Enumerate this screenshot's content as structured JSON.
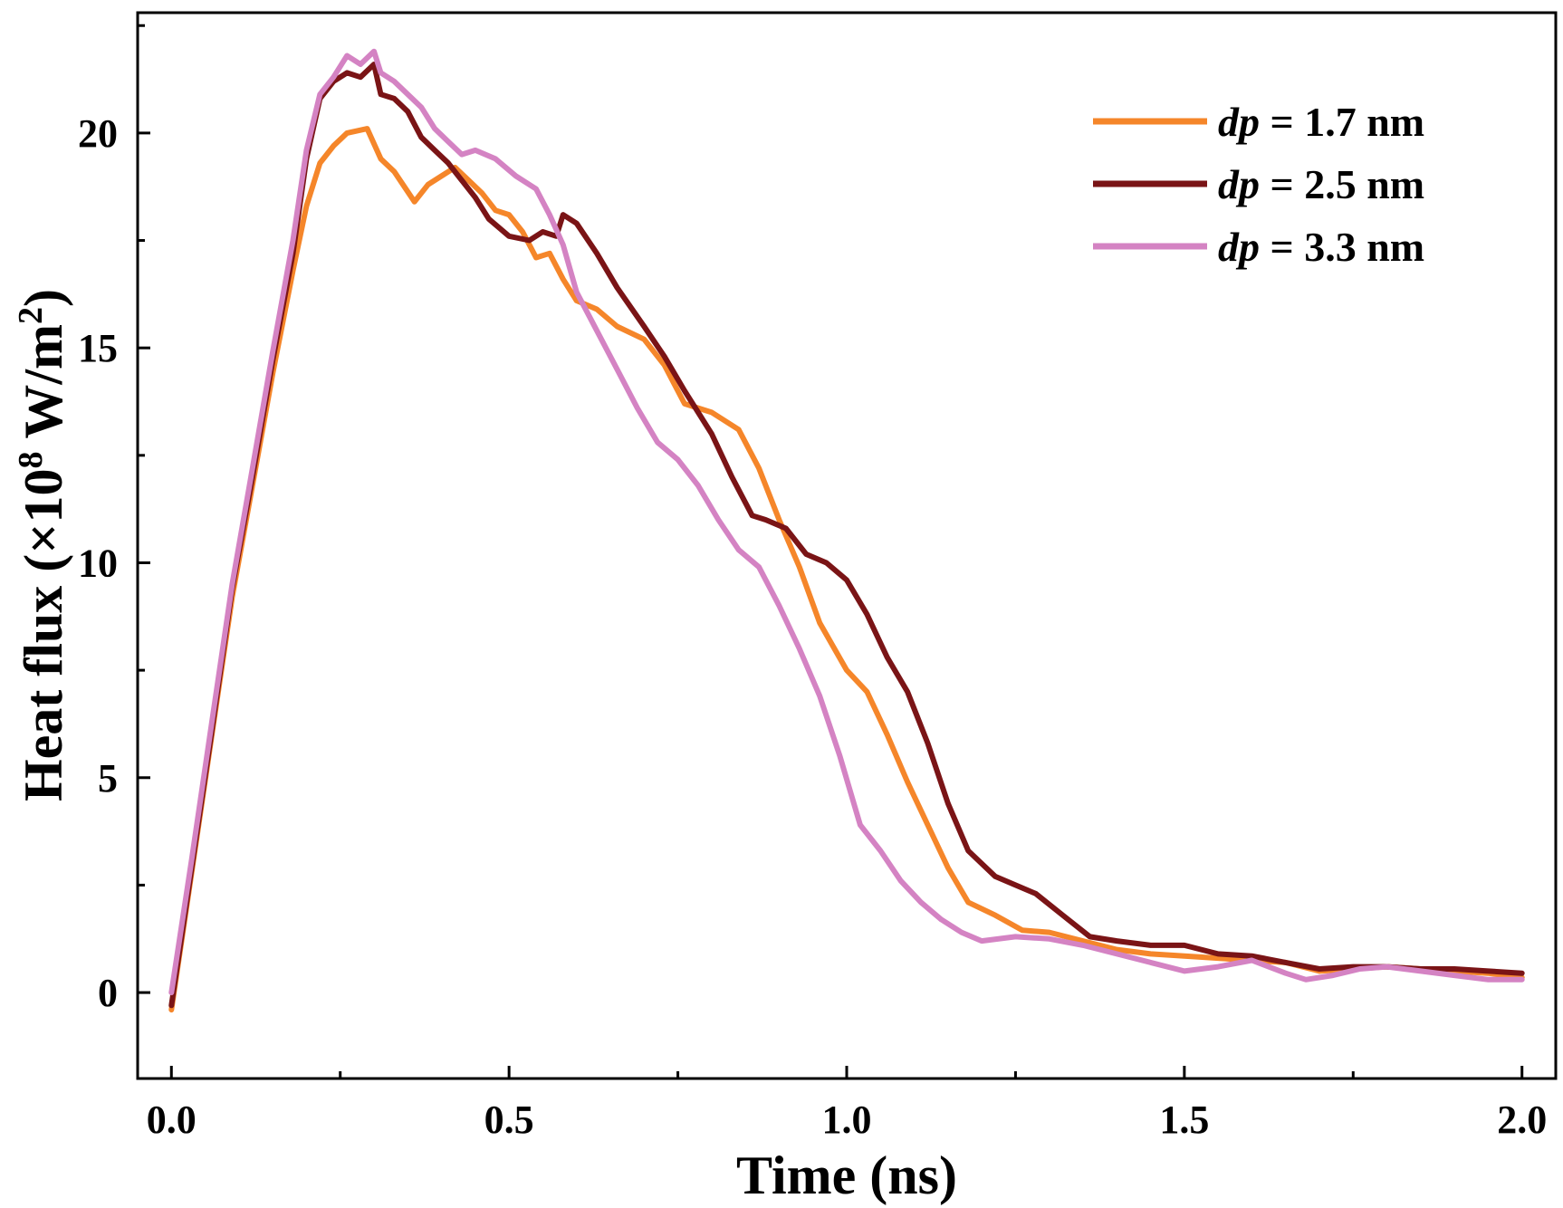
{
  "chart_data": {
    "type": "line",
    "title": "",
    "xlabel": "Time (ns)",
    "ylabel_parts": {
      "main": "Heat flux (×10",
      "sup1": "8",
      "unit": " W/m",
      "sup2": "2",
      "close": ")"
    },
    "xlim": [
      -0.05,
      2.05
    ],
    "ylim": [
      -2,
      22.8
    ],
    "xticks": [
      0.0,
      0.5,
      1.0,
      1.5,
      2.0
    ],
    "xtick_labels": [
      "0.0",
      "0.5",
      "1.0",
      "1.5",
      "2.0"
    ],
    "yticks": [
      0,
      5,
      10,
      15,
      20
    ],
    "ytick_labels": [
      "0",
      "5",
      "10",
      "15",
      "20"
    ],
    "grid": false,
    "legend_position": "top-right",
    "legend_var": "dp",
    "series": [
      {
        "name": "dp = 1.7 nm",
        "label_prefix": "dp",
        "label_rest": " = 1.7 nm",
        "color": "#F5862A",
        "x": [
          0.0,
          0.03,
          0.06,
          0.09,
          0.12,
          0.15,
          0.18,
          0.2,
          0.22,
          0.24,
          0.26,
          0.29,
          0.31,
          0.33,
          0.36,
          0.38,
          0.4,
          0.42,
          0.44,
          0.46,
          0.48,
          0.5,
          0.52,
          0.54,
          0.56,
          0.58,
          0.6,
          0.63,
          0.66,
          0.7,
          0.73,
          0.76,
          0.8,
          0.84,
          0.87,
          0.9,
          0.93,
          0.96,
          1.0,
          1.03,
          1.06,
          1.09,
          1.12,
          1.15,
          1.18,
          1.22,
          1.26,
          1.3,
          1.35,
          1.4,
          1.45,
          1.5,
          1.55,
          1.6,
          1.65,
          1.7,
          1.75,
          1.8,
          1.85,
          1.9,
          1.95,
          2.0
        ],
        "y": [
          -0.4,
          2.8,
          6.0,
          9.2,
          11.8,
          14.4,
          16.8,
          18.3,
          19.3,
          19.7,
          20.0,
          20.1,
          19.4,
          19.1,
          18.4,
          18.8,
          19.0,
          19.2,
          18.9,
          18.6,
          18.2,
          18.1,
          17.7,
          17.1,
          17.2,
          16.6,
          16.1,
          15.9,
          15.5,
          15.2,
          14.6,
          13.7,
          13.5,
          13.1,
          12.2,
          11.0,
          9.9,
          8.6,
          7.5,
          7.0,
          6.0,
          4.9,
          3.9,
          2.9,
          2.1,
          1.8,
          1.45,
          1.4,
          1.2,
          1.0,
          0.9,
          0.85,
          0.8,
          0.75,
          0.7,
          0.5,
          0.55,
          0.6,
          0.55,
          0.5,
          0.45,
          0.35
        ]
      },
      {
        "name": "dp = 2.5 nm",
        "label_prefix": "dp",
        "label_rest": " = 2.5 nm",
        "color": "#7A1416",
        "x": [
          0.0,
          0.03,
          0.06,
          0.09,
          0.12,
          0.15,
          0.18,
          0.2,
          0.22,
          0.24,
          0.26,
          0.28,
          0.3,
          0.31,
          0.33,
          0.35,
          0.37,
          0.39,
          0.41,
          0.43,
          0.45,
          0.47,
          0.5,
          0.53,
          0.55,
          0.57,
          0.58,
          0.6,
          0.63,
          0.66,
          0.7,
          0.73,
          0.76,
          0.8,
          0.83,
          0.86,
          0.88,
          0.91,
          0.94,
          0.97,
          1.0,
          1.03,
          1.06,
          1.09,
          1.12,
          1.15,
          1.18,
          1.22,
          1.25,
          1.28,
          1.32,
          1.36,
          1.4,
          1.45,
          1.5,
          1.55,
          1.6,
          1.65,
          1.7,
          1.75,
          1.8,
          1.85,
          1.9,
          1.95,
          2.0
        ],
        "y": [
          -0.3,
          2.9,
          6.1,
          9.4,
          12.0,
          14.7,
          17.2,
          19.4,
          20.8,
          21.2,
          21.4,
          21.3,
          21.6,
          20.9,
          20.8,
          20.5,
          19.9,
          19.6,
          19.3,
          18.9,
          18.5,
          18.0,
          17.6,
          17.5,
          17.7,
          17.6,
          18.1,
          17.9,
          17.2,
          16.4,
          15.5,
          14.8,
          14.0,
          13.0,
          12.0,
          11.1,
          11.0,
          10.8,
          10.2,
          10.0,
          9.6,
          8.8,
          7.8,
          7.0,
          5.8,
          4.4,
          3.3,
          2.7,
          2.5,
          2.3,
          1.8,
          1.3,
          1.2,
          1.1,
          1.1,
          0.9,
          0.85,
          0.7,
          0.55,
          0.6,
          0.6,
          0.55,
          0.55,
          0.5,
          0.45
        ]
      },
      {
        "name": "dp = 3.3 nm",
        "label_prefix": "dp",
        "label_rest": " = 3.3 nm",
        "color": "#D483C3",
        "x": [
          0.0,
          0.03,
          0.06,
          0.09,
          0.12,
          0.15,
          0.18,
          0.2,
          0.22,
          0.24,
          0.26,
          0.28,
          0.3,
          0.31,
          0.33,
          0.35,
          0.37,
          0.39,
          0.41,
          0.43,
          0.45,
          0.48,
          0.51,
          0.54,
          0.56,
          0.58,
          0.6,
          0.63,
          0.66,
          0.69,
          0.72,
          0.75,
          0.78,
          0.81,
          0.84,
          0.87,
          0.9,
          0.93,
          0.96,
          0.99,
          1.02,
          1.05,
          1.08,
          1.11,
          1.14,
          1.17,
          1.2,
          1.25,
          1.3,
          1.35,
          1.4,
          1.45,
          1.5,
          1.55,
          1.6,
          1.65,
          1.68,
          1.72,
          1.76,
          1.8,
          1.85,
          1.9,
          1.95,
          2.0
        ],
        "y": [
          0.0,
          3.1,
          6.3,
          9.5,
          12.2,
          14.9,
          17.5,
          19.6,
          20.9,
          21.3,
          21.8,
          21.6,
          21.9,
          21.4,
          21.2,
          20.9,
          20.6,
          20.1,
          19.8,
          19.5,
          19.6,
          19.4,
          19.0,
          18.7,
          18.1,
          17.4,
          16.3,
          15.4,
          14.5,
          13.6,
          12.8,
          12.4,
          11.8,
          11.0,
          10.3,
          9.9,
          9.0,
          8.0,
          6.9,
          5.5,
          3.9,
          3.3,
          2.6,
          2.1,
          1.7,
          1.4,
          1.2,
          1.3,
          1.25,
          1.1,
          0.9,
          0.7,
          0.5,
          0.6,
          0.75,
          0.45,
          0.3,
          0.4,
          0.55,
          0.6,
          0.5,
          0.4,
          0.3,
          0.3
        ]
      }
    ]
  }
}
